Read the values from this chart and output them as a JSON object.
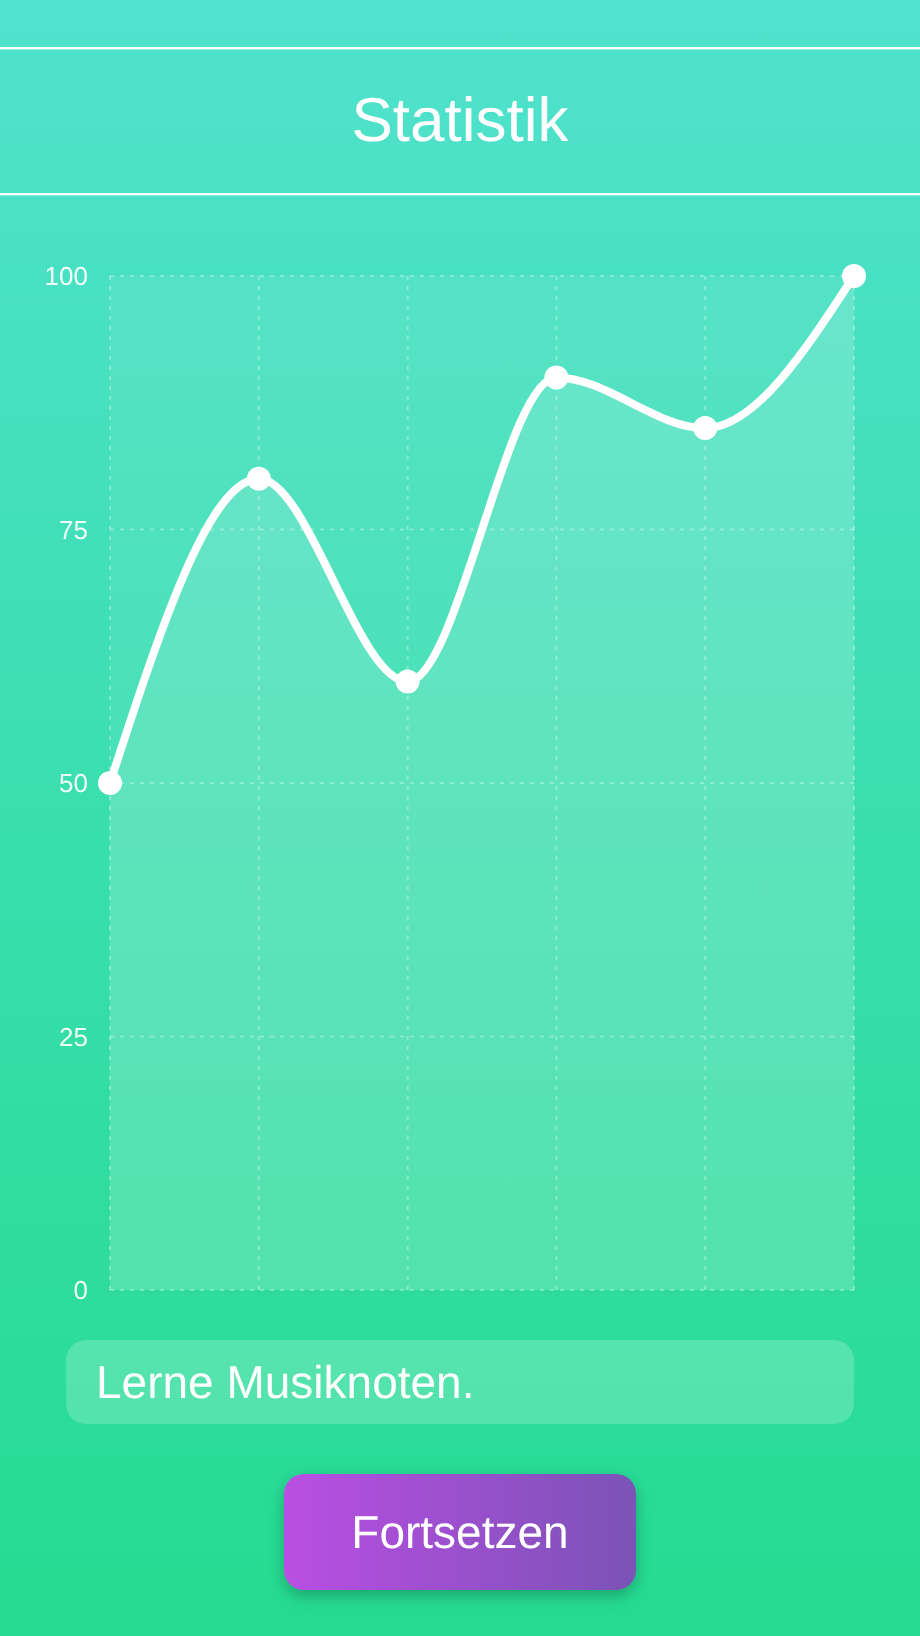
{
  "chart_data": {
    "type": "area",
    "title": "Statistik",
    "categories": [
      null,
      null,
      null,
      null,
      null,
      null
    ],
    "values": [
      50,
      80,
      60,
      90,
      85,
      100
    ],
    "color": "#ffffff",
    "ylim": [
      0,
      100
    ],
    "yticks": [
      0,
      25,
      50,
      75,
      100
    ],
    "grid": true,
    "marker": "circle",
    "line_style": "solid",
    "tick_labels": "y",
    "annotations": [
      "Lerne Musiknoten.",
      "Fortsetzen"
    ]
  }
}
